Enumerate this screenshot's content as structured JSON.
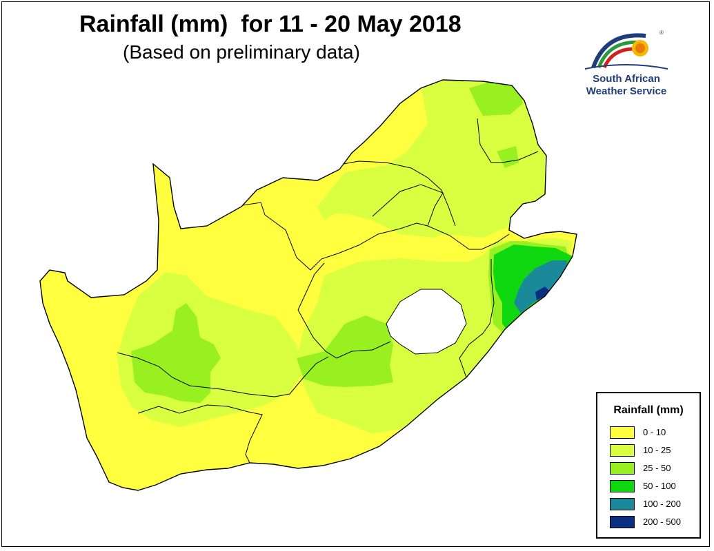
{
  "header": {
    "title": "Rainfall (mm)  for 11 - 20 May 2018",
    "subtitle": "(Based on preliminary data)"
  },
  "logo": {
    "line1": "South African",
    "line2": "Weather Service",
    "registered": "®"
  },
  "legend": {
    "title": "Rainfall (mm)",
    "items": [
      {
        "label": "0 - 10",
        "color": "#ffff40"
      },
      {
        "label": "10 - 25",
        "color": "#d8ff40"
      },
      {
        "label": "25 - 50",
        "color": "#98f020"
      },
      {
        "label": "50 - 100",
        "color": "#10d810"
      },
      {
        "label": "100 - 200",
        "color": "#1a8a9a"
      },
      {
        "label": "200 - 500",
        "color": "#0a2f80"
      }
    ]
  }
}
